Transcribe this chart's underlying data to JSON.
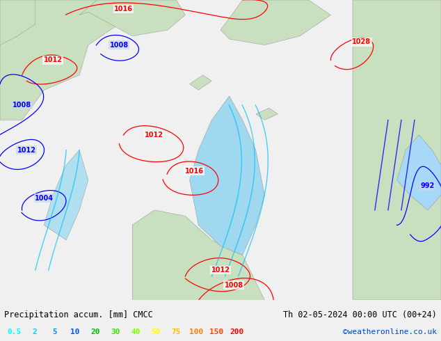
{
  "title_left": "Precipitation accum. [mm] CMCC",
  "title_right": "Th 02-05-2024 00:00 UTC (00+24)",
  "credit": "©weatheronline.co.uk",
  "legend_values": [
    "0.5",
    "2",
    "5",
    "10",
    "20",
    "30",
    "40",
    "50",
    "75",
    "100",
    "150",
    "200"
  ],
  "legend_colors": [
    "#00ffff",
    "#00d0ff",
    "#0090ff",
    "#0050ff",
    "#00c000",
    "#40e000",
    "#80ff00",
    "#ffff00",
    "#ffc000",
    "#ff8000",
    "#ff4000",
    "#ff0000"
  ],
  "bg_color": "#f0f0f0",
  "map_bg": "#d8efd8",
  "sea_color": "#c8d8f0",
  "land_color": "#c8e0c0",
  "contour_color_red": "#ff0000",
  "contour_color_blue": "#0000ff",
  "contour_color_cyan": "#00c0ff",
  "text_color": "#000000",
  "legend_label_colors": [
    "#00ffff",
    "#00ccff",
    "#0088ff",
    "#0044ff",
    "#00bb00",
    "#44dd00",
    "#88ff00",
    "#ffff00",
    "#ffaa00",
    "#ff6600",
    "#ff2200",
    "#cc0000"
  ],
  "bottom_strip_color": "#ffffff",
  "figsize": [
    6.34,
    4.9
  ],
  "dpi": 100
}
